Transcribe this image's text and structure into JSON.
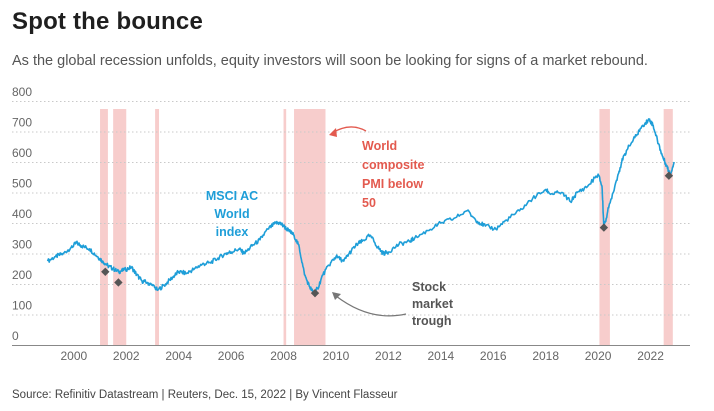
{
  "header": {
    "title": "Spot the bounce",
    "subtitle": "As the global recession unfolds, equity investors will soon be looking for signs of a market rebound."
  },
  "footer": {
    "source": "Source: Refinitiv Datastream | Reuters, Dec. 15, 2022 | By Vincent Flasseur"
  },
  "colors": {
    "line": "#1e9ed8",
    "band": "#f7cdcc",
    "marker": "#555555",
    "pmi_annotation": "#e35a4f",
    "index_annotation": "#1e9ed8",
    "trough_annotation": "#555555"
  },
  "chart_data": {
    "type": "line",
    "title": "Spot the bounce",
    "xlim": [
      1998.9,
      2023.2
    ],
    "ylim": [
      0,
      800
    ],
    "yticks": [
      0,
      100,
      200,
      300,
      400,
      500,
      600,
      700,
      800
    ],
    "xticks": [
      2000,
      2002,
      2004,
      2006,
      2008,
      2010,
      2012,
      2014,
      2016,
      2018,
      2020,
      2022
    ],
    "grid": "horizontal dotted",
    "series": [
      {
        "name": "MSCI AC World index",
        "x": [
          1999.0,
          1999.3,
          1999.6,
          1999.9,
          2000.1,
          2000.3,
          2000.6,
          2000.9,
          2001.1,
          2001.3,
          2001.5,
          2001.7,
          2001.9,
          2002.2,
          2002.4,
          2002.6,
          2002.8,
          2003.0,
          2003.2,
          2003.5,
          2003.8,
          2004.0,
          2004.3,
          2004.6,
          2004.9,
          2005.2,
          2005.5,
          2005.8,
          2006.0,
          2006.3,
          2006.5,
          2006.8,
          2007.1,
          2007.4,
          2007.7,
          2007.85,
          2008.0,
          2008.2,
          2008.4,
          2008.6,
          2008.8,
          2009.0,
          2009.15,
          2009.3,
          2009.5,
          2009.8,
          2010.0,
          2010.3,
          2010.5,
          2010.8,
          2011.0,
          2011.3,
          2011.6,
          2011.8,
          2012.0,
          2012.4,
          2012.8,
          2013.0,
          2013.5,
          2014.0,
          2014.5,
          2015.0,
          2015.4,
          2015.7,
          2016.1,
          2016.5,
          2017.0,
          2017.5,
          2018.0,
          2018.2,
          2018.6,
          2018.95,
          2019.2,
          2019.6,
          2020.0,
          2020.15,
          2020.22,
          2020.4,
          2020.7,
          2020.9,
          2021.1,
          2021.4,
          2021.7,
          2021.95,
          2022.1,
          2022.3,
          2022.45,
          2022.6,
          2022.75,
          2022.9
        ],
        "values": [
          275,
          290,
          300,
          320,
          335,
          325,
          315,
          290,
          275,
          260,
          250,
          240,
          245,
          255,
          230,
          210,
          205,
          195,
          180,
          200,
          225,
          240,
          235,
          250,
          265,
          270,
          285,
          300,
          305,
          315,
          300,
          325,
          345,
          380,
          400,
          400,
          390,
          375,
          360,
          320,
          230,
          190,
          170,
          185,
          230,
          270,
          290,
          275,
          300,
          330,
          340,
          360,
          320,
          300,
          305,
          330,
          340,
          350,
          375,
          400,
          415,
          440,
          405,
          390,
          380,
          410,
          440,
          480,
          510,
          495,
          500,
          470,
          500,
          520,
          560,
          520,
          385,
          450,
          540,
          600,
          640,
          680,
          720,
          740,
          720,
          660,
          620,
          590,
          560,
          600
        ]
      }
    ],
    "shaded_periods": [
      [
        2001.0,
        2001.3
      ],
      [
        2001.5,
        2002.0
      ],
      [
        2003.1,
        2003.25
      ],
      [
        2008.0,
        2008.1
      ],
      [
        2008.4,
        2009.6
      ],
      [
        2020.05,
        2020.45
      ],
      [
        2022.5,
        2022.85
      ]
    ],
    "trough_markers": [
      {
        "x": 2001.2,
        "y": 240
      },
      {
        "x": 2001.7,
        "y": 205
      },
      {
        "x": 2009.2,
        "y": 170
      },
      {
        "x": 2020.22,
        "y": 385
      },
      {
        "x": 2022.7,
        "y": 555
      }
    ],
    "annotations": {
      "pmi": [
        "World",
        "composite",
        "PMI below",
        "50"
      ],
      "index": [
        "MSCI AC",
        "World",
        "index"
      ],
      "trough": [
        "Stock",
        "market",
        "trough"
      ]
    }
  }
}
